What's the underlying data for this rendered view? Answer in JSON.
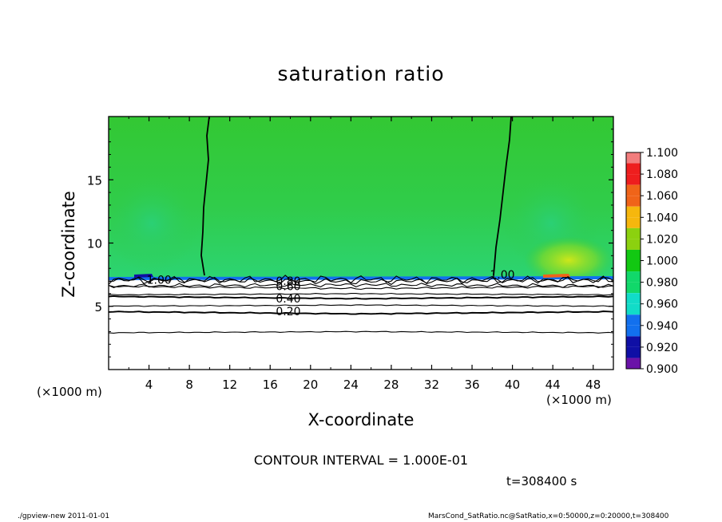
{
  "chart_data": {
    "type": "contour",
    "title": "saturation ratio",
    "xlabel": "X-coordinate",
    "ylabel": "Z-coordinate",
    "x_unit": "(×1000 m)",
    "xlim": [
      0,
      50
    ],
    "ylim": [
      0,
      20
    ],
    "x_ticks": [
      4,
      8,
      12,
      16,
      20,
      24,
      28,
      32,
      36,
      40,
      44,
      48
    ],
    "y_ticks": [
      5,
      10,
      15
    ],
    "colorbar": {
      "levels": [
        "1.100",
        "1.080",
        "1.060",
        "1.040",
        "1.020",
        "1.000",
        "0.980",
        "0.960",
        "0.940",
        "0.920",
        "0.900"
      ],
      "colors": [
        "#f27d7d",
        "#ee1e1e",
        "#f06419",
        "#f6b70d",
        "#8cd10f",
        "#12c812",
        "#11d86a",
        "#11dcc8",
        "#1270ee",
        "#0f0fa5",
        "#6a12a8"
      ]
    },
    "contour_labels": [
      {
        "text": "0.20",
        "x": 17.8,
        "z": 4.6
      },
      {
        "text": "0.40",
        "x": 17.8,
        "z": 5.6
      },
      {
        "text": "0.60",
        "x": 17.8,
        "z": 6.6
      },
      {
        "text": "0.80",
        "x": 17.8,
        "z": 7.0
      },
      {
        "text": "1.00",
        "x": 39.0,
        "z": 7.5
      },
      {
        "text": "1.00",
        "x": 5.0,
        "z": 7.1
      }
    ],
    "contour_interval": "CONTOUR INTERVAL = 1.000E-01",
    "time": "t=308400 s"
  },
  "footer": {
    "left": "./gpview-new   2011-01-01",
    "right": "MarsCond_SatRatio.nc@SatRatio,x=0:50000,z=0:20000,t=308400"
  }
}
